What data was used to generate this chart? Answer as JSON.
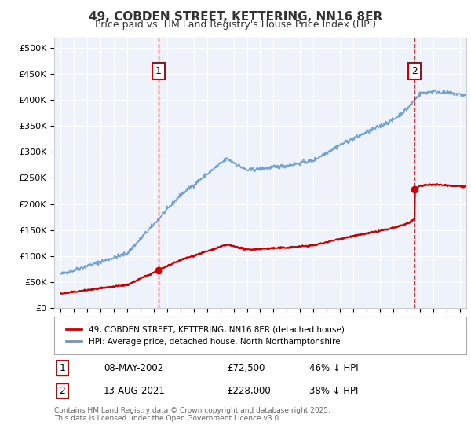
{
  "title": "49, COBDEN STREET, KETTERING, NN16 8ER",
  "subtitle": "Price paid vs. HM Land Registry's House Price Index (HPI)",
  "legend_line1": "49, COBDEN STREET, KETTERING, NN16 8ER (detached house)",
  "legend_line2": "HPI: Average price, detached house, North Northamptonshire",
  "annotation1": {
    "label": "1",
    "date": "08-MAY-2002",
    "price": "£72,500",
    "pct": "46% ↓ HPI",
    "x_year": 2002.35
  },
  "annotation2": {
    "label": "2",
    "date": "13-AUG-2021",
    "price": "£228,000",
    "pct": "38% ↓ HPI",
    "x_year": 2021.61
  },
  "footer": "Contains HM Land Registry data © Crown copyright and database right 2025.\nThis data is licensed under the Open Government Licence v3.0.",
  "background_color": "#eef3fb",
  "plot_bg_color": "#eef3fb",
  "red_color": "#cc0000",
  "blue_color": "#6699cc",
  "dashed_color": "#cc0000",
  "ylim": [
    0,
    520000
  ],
  "xlim_start": 1994.5,
  "xlim_end": 2025.5
}
